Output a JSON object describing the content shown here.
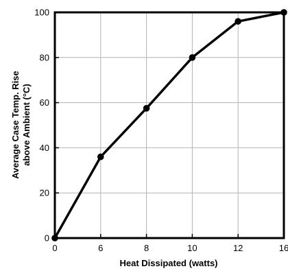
{
  "chart_data": {
    "type": "line",
    "title": "",
    "xlabel": "Heat Dissipated (watts)",
    "ylabel_lines": [
      "Average Case Temp. Rise",
      "above Ambient (°C)"
    ],
    "x_ticks": [
      "0",
      "6",
      "8",
      "10",
      "12",
      "16"
    ],
    "y_ticks": [
      "0",
      "20",
      "40",
      "60",
      "80",
      "100"
    ],
    "ylim": [
      0,
      100
    ],
    "grid": true,
    "series": [
      {
        "x": [
          "0",
          "6",
          "8",
          "10",
          "12",
          "16"
        ],
        "values": [
          0,
          36,
          57.5,
          80,
          96,
          100
        ]
      }
    ],
    "colors": {
      "line": "#000000",
      "grid": "#b3b3b3",
      "frame": "#000000"
    }
  }
}
